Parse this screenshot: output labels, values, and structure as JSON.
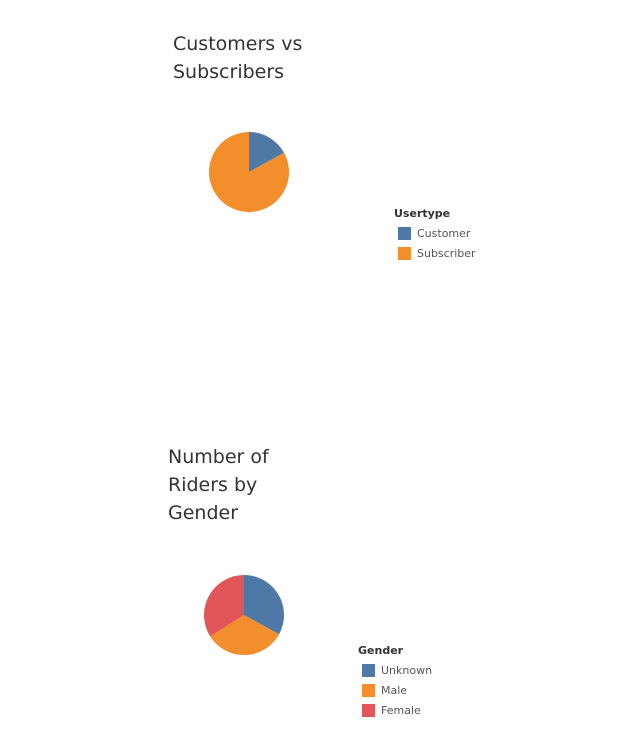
{
  "chart_data": [
    {
      "type": "pie",
      "title": "Customers vs\nSubscribers",
      "legend_title": "Usertype",
      "legend_position": "right",
      "series": [
        {
          "name": "Customer",
          "value": 17,
          "color": "#4e79a7"
        },
        {
          "name": "Subscriber",
          "value": 83,
          "color": "#f28e2b"
        }
      ]
    },
    {
      "type": "pie",
      "title": "Number of\nRiders by\nGender",
      "legend_title": "Gender",
      "legend_position": "right",
      "series": [
        {
          "name": "Unknown",
          "value": 33,
          "color": "#4e79a7"
        },
        {
          "name": "Male",
          "value": 33,
          "color": "#f28e2b"
        },
        {
          "name": "Female",
          "value": 34,
          "color": "#e15759"
        }
      ]
    }
  ]
}
